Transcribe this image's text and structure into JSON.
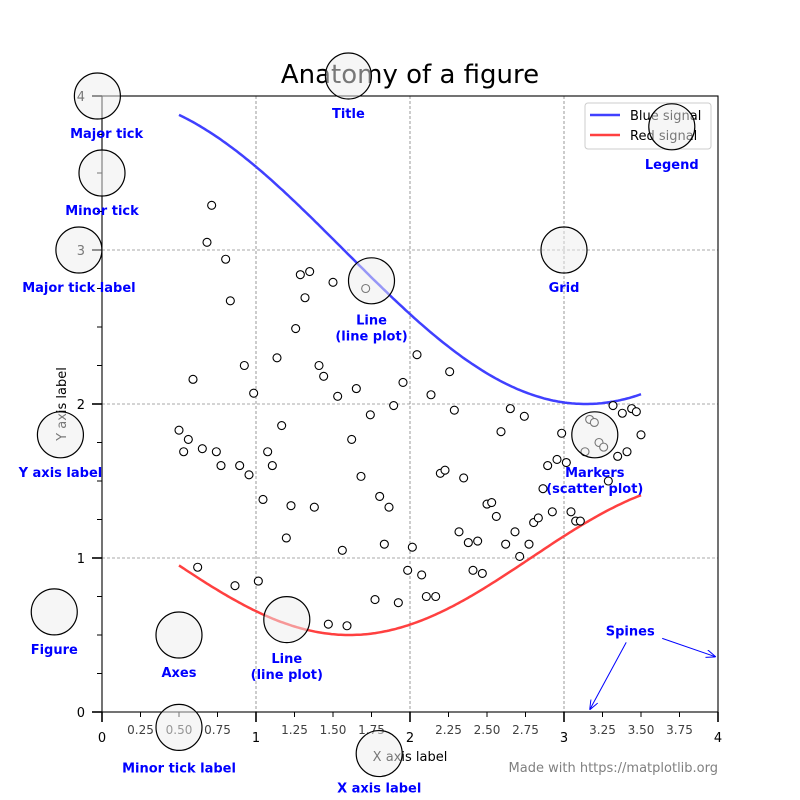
{
  "chart_data": {
    "type": "line",
    "title": "Anatomy of a figure",
    "xlabel": "X axis label",
    "ylabel": "Y axis label",
    "xlim": [
      0,
      4
    ],
    "ylim": [
      0,
      4
    ],
    "grid": true,
    "legend_placement": "upper right",
    "x_major_ticks": [
      0,
      1,
      2,
      3,
      4
    ],
    "x_major_labels": [
      "0",
      "1",
      "2",
      "3",
      "4"
    ],
    "x_minor_ticks": [
      0.25,
      0.5,
      0.75,
      1.25,
      1.5,
      1.75,
      2.25,
      2.5,
      2.75,
      3.25,
      3.5,
      3.75
    ],
    "x_minor_labels": [
      "0.25",
      "0.50",
      "0.75",
      "1.25",
      "1.50",
      "1.75",
      "2.25",
      "2.50",
      "2.75",
      "3.25",
      "3.50",
      "3.75"
    ],
    "y_major_ticks": [
      0,
      1,
      2,
      3,
      4
    ],
    "y_major_labels": [
      "0",
      "1",
      "2",
      "3",
      "4"
    ],
    "y_minor_ticks": [
      0.25,
      0.5,
      0.75,
      1.25,
      1.5,
      1.75,
      2.25,
      2.5,
      2.75,
      3.25,
      3.5,
      3.75
    ],
    "series": [
      {
        "name": "Blue signal",
        "kind": "line",
        "color": "#4040ff",
        "formula": "3 + cos(x)",
        "x_range": [
          0.5,
          3.5
        ]
      },
      {
        "name": "Red signal",
        "kind": "line",
        "color": "#ff4040",
        "formula": "1 + cos(1 + x/0.75)/2",
        "x_range": [
          0.5,
          3.5
        ]
      },
      {
        "kind": "scatter",
        "marker": "o",
        "facecolor": "#ffffff",
        "edgecolor": "#000000",
        "x_range": [
          0.5,
          3.5
        ],
        "y": [
          1.83,
          1.69,
          1.77,
          2.16,
          0.94,
          1.71,
          3.05,
          3.29,
          1.69,
          1.6,
          2.94,
          2.67,
          0.82,
          1.6,
          2.25,
          1.54,
          2.07,
          0.85,
          1.38,
          1.69,
          1.6,
          2.3,
          1.86,
          1.13,
          1.34,
          2.49,
          2.84,
          2.69,
          2.86,
          1.33,
          2.25,
          2.18,
          0.57,
          2.79,
          2.05,
          1.05,
          0.56,
          1.77,
          2.1,
          1.53,
          2.75,
          1.93,
          0.73,
          1.4,
          1.09,
          1.33,
          1.99,
          0.71,
          2.14,
          0.92,
          1.07,
          2.32,
          0.89,
          0.75,
          2.06,
          0.75,
          1.55,
          1.57,
          2.21,
          1.96,
          1.17,
          1.52,
          1.1,
          0.92,
          1.11,
          0.9,
          1.35,
          1.36,
          1.27,
          1.82,
          1.09,
          1.97,
          1.17,
          1.01,
          1.92,
          1.09,
          1.23,
          1.26,
          1.45,
          1.6,
          1.3,
          1.64,
          1.81,
          1.62,
          1.3,
          1.24,
          1.24,
          1.69,
          1.9,
          1.88,
          1.75,
          1.72,
          1.5,
          1.99,
          1.66,
          1.94,
          1.69,
          1.97,
          1.95,
          1.8
        ]
      }
    ],
    "annotations": [
      {
        "id": "major-tick",
        "circle": [
          -0.03,
          4.0
        ],
        "label_at": [
          0.03,
          3.76
        ],
        "lines": [
          "Major tick"
        ]
      },
      {
        "id": "minor-tick",
        "circle": [
          0.0,
          3.5
        ],
        "label_at": [
          0.0,
          3.26
        ],
        "lines": [
          "Minor tick"
        ]
      },
      {
        "id": "major-tick-label",
        "circle": [
          -0.15,
          3.0
        ],
        "label_at": [
          -0.15,
          2.76
        ],
        "lines": [
          "Major tick label"
        ]
      },
      {
        "id": "title",
        "circle": [
          1.6,
          4.13
        ],
        "label_at": [
          1.6,
          3.89
        ],
        "lines": [
          "Title"
        ]
      },
      {
        "id": "legend",
        "circle": [
          3.7,
          3.8
        ],
        "label_at": [
          3.7,
          3.56
        ],
        "lines": [
          "Legend"
        ]
      },
      {
        "id": "grid",
        "circle": [
          3.0,
          3.0
        ],
        "label_at": [
          3.0,
          2.76
        ],
        "lines": [
          "Grid"
        ]
      },
      {
        "id": "line-top",
        "circle": [
          1.75,
          2.8
        ],
        "label_at": [
          1.75,
          2.55
        ],
        "lines": [
          "Line",
          "(line plot)"
        ]
      },
      {
        "id": "line-bottom",
        "circle": [
          1.2,
          0.6
        ],
        "label_at": [
          1.2,
          0.35
        ],
        "lines": [
          "Line",
          "(line plot)"
        ]
      },
      {
        "id": "y-axis-label",
        "circle": [
          -0.27,
          1.8
        ],
        "label_at": [
          -0.27,
          1.56
        ],
        "lines": [
          "Y axis label"
        ]
      },
      {
        "id": "markers",
        "circle": [
          3.2,
          1.8
        ],
        "label_at": [
          3.2,
          1.56
        ],
        "lines": [
          "Markers",
          "(scatter plot)"
        ]
      },
      {
        "id": "figure",
        "circle": [
          -0.31,
          0.65
        ],
        "label_at": [
          -0.31,
          0.41
        ],
        "lines": [
          "Figure"
        ]
      },
      {
        "id": "axes",
        "circle": [
          0.5,
          0.5
        ],
        "label_at": [
          0.5,
          0.26
        ],
        "lines": [
          "Axes"
        ]
      },
      {
        "id": "minor-tick-label",
        "circle": [
          0.5,
          -0.1
        ],
        "label_at": [
          0.5,
          -0.36
        ],
        "lines": [
          "Minor tick label"
        ]
      },
      {
        "id": "x-axis-label",
        "circle": [
          1.8,
          -0.27
        ],
        "label_at": [
          1.8,
          -0.49
        ],
        "lines": [
          "X axis label"
        ]
      }
    ],
    "spines_annotation": {
      "label": "Spines",
      "label_at": [
        3.43,
        0.53
      ],
      "arrow_targets": [
        [
          3.17,
          0.02
        ],
        [
          3.98,
          0.36
        ]
      ]
    },
    "annotation_color": "#0000ff"
  },
  "footer": "Made with https://matplotlib.org"
}
